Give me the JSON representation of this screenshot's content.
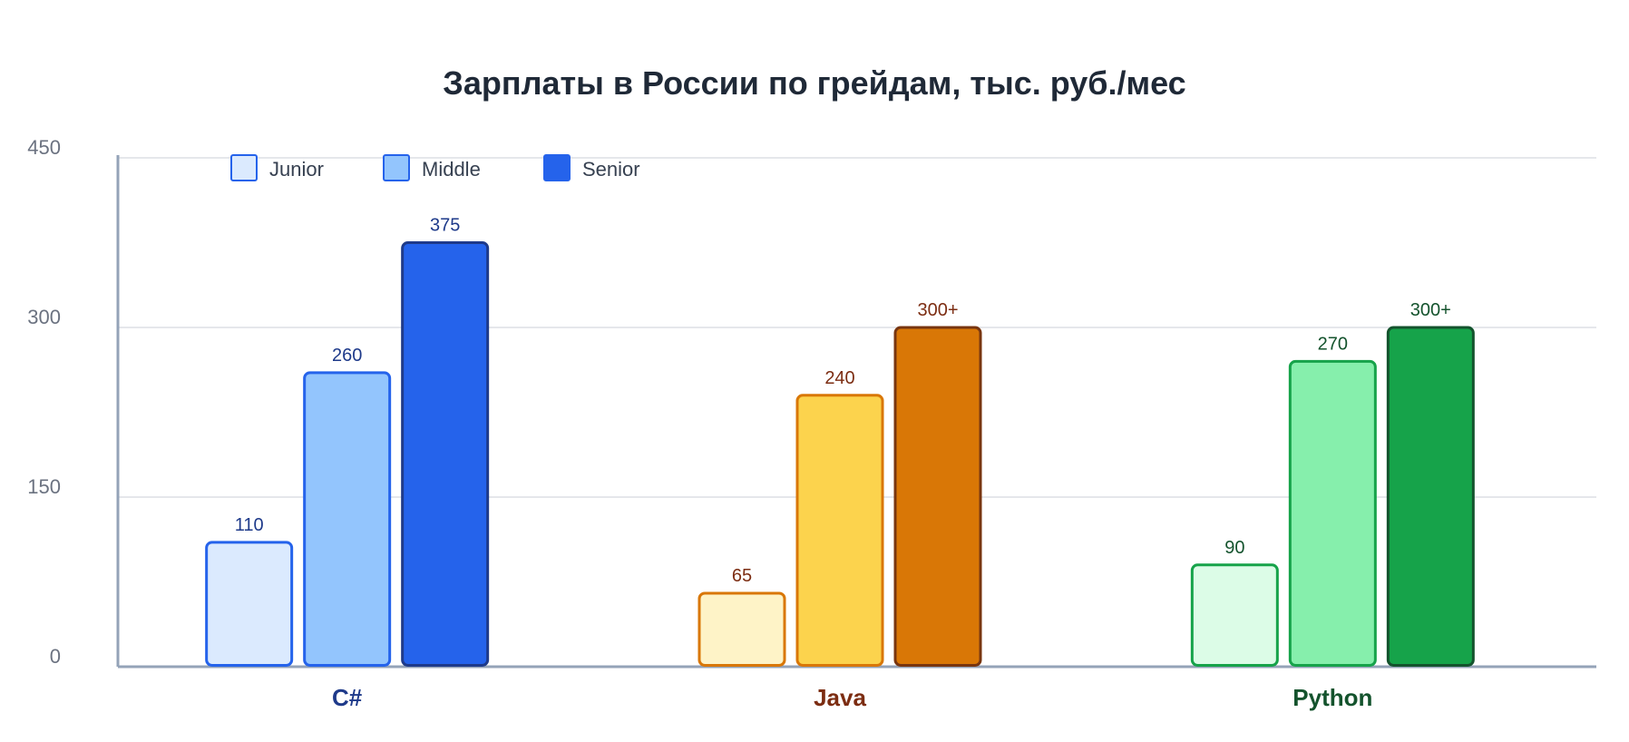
{
  "chart_data": {
    "type": "bar",
    "title": "Зарплаты в России по грейдам, тыс. руб./мес",
    "categories": [
      "C#",
      "Java",
      "Python"
    ],
    "ylim": [
      0,
      450
    ],
    "yticks": [
      "0",
      "150",
      "300",
      "450"
    ],
    "grid": true,
    "legend_position": "top-left",
    "series": [
      {
        "name": "Junior",
        "values": [
          110,
          65,
          90
        ],
        "labels": [
          "110",
          "65",
          "90"
        ]
      },
      {
        "name": "Middle",
        "values": [
          260,
          240,
          270
        ],
        "labels": [
          "260",
          "240",
          "270"
        ]
      },
      {
        "name": "Senior",
        "values": [
          375,
          300,
          300
        ],
        "labels": [
          "375",
          "300+",
          "300+"
        ]
      }
    ],
    "legend_colors": [
      "#dbeafe",
      "#93c5fd",
      "#2563eb"
    ],
    "category_colors": [
      {
        "fills": [
          "#dbeafe",
          "#93c5fd",
          "#2563eb"
        ],
        "strokes": [
          "#2563eb",
          "#2563eb",
          "#1e3a8a"
        ],
        "label": "#1e3a8a"
      },
      {
        "fills": [
          "#fef3c7",
          "#fcd34d",
          "#d97706"
        ],
        "strokes": [
          "#d97706",
          "#d97706",
          "#78350f"
        ],
        "label": "#7c2d12"
      },
      {
        "fills": [
          "#dcfce7",
          "#86efac",
          "#16a34a"
        ],
        "strokes": [
          "#16a34a",
          "#16a34a",
          "#14532d"
        ],
        "label": "#14532d"
      }
    ]
  }
}
